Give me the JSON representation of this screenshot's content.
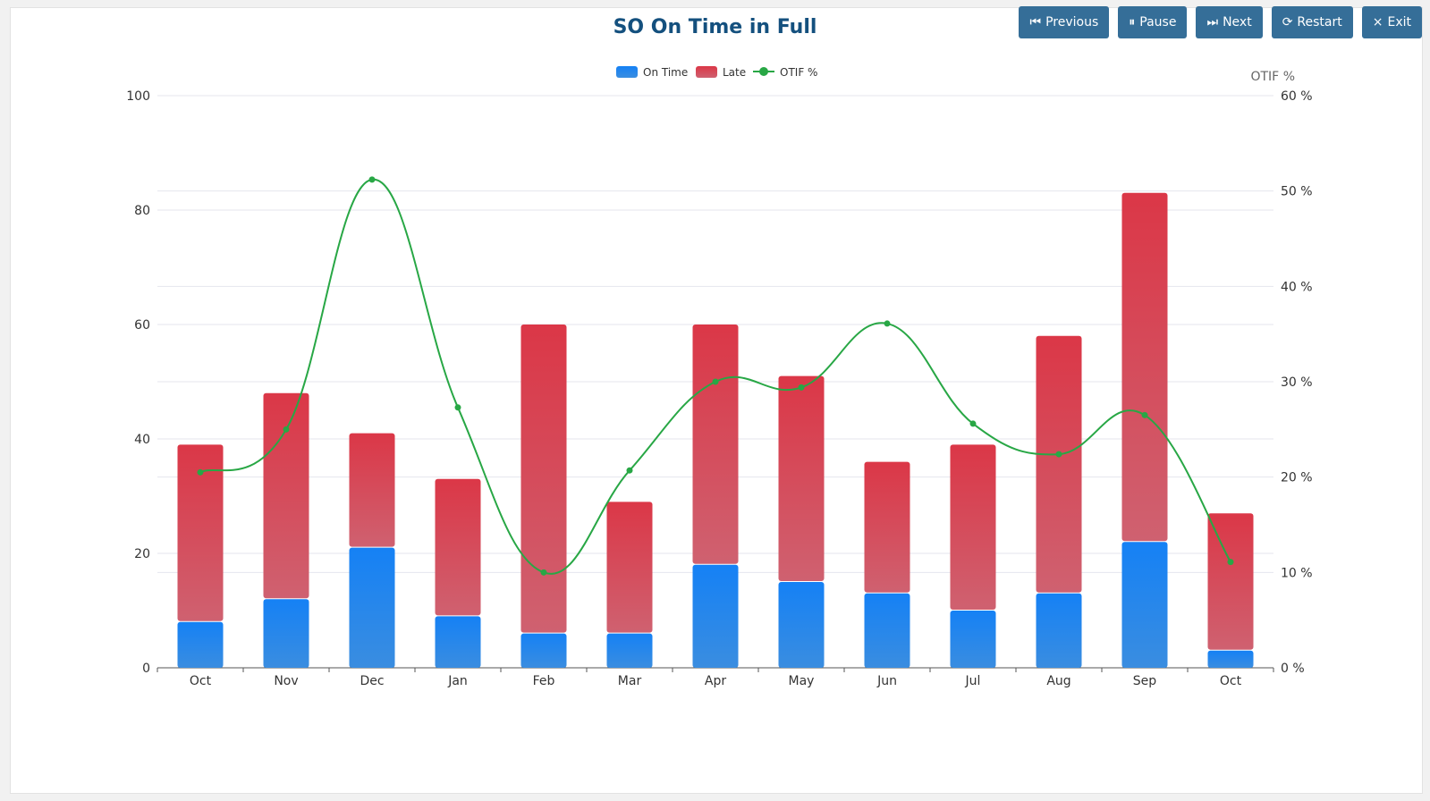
{
  "toolbar": {
    "buttons": [
      {
        "label": "Previous",
        "icon": "⏮"
      },
      {
        "label": "Pause",
        "icon": "⏸"
      },
      {
        "label": "Next",
        "icon": "⏭"
      },
      {
        "label": "Restart",
        "icon": "⟳"
      },
      {
        "label": "Exit",
        "icon": "×"
      }
    ]
  },
  "colors": {
    "on_time": "#1581f5",
    "late": "#db3747",
    "otif": "#28a745",
    "title": "#14507e",
    "button": "#356e98"
  },
  "chart_data": {
    "type": "bar",
    "stacked": true,
    "title": "SO On Time in Full",
    "categories": [
      "Oct",
      "Nov",
      "Dec",
      "Jan",
      "Feb",
      "Mar",
      "Apr",
      "May",
      "Jun",
      "Jul",
      "Aug",
      "Sep",
      "Oct"
    ],
    "series": [
      {
        "name": "On Time",
        "type": "bar",
        "axis": "left",
        "values": [
          8,
          12,
          21,
          9,
          6,
          6,
          18,
          15,
          13,
          10,
          13,
          22,
          3
        ]
      },
      {
        "name": "Late",
        "type": "bar",
        "axis": "left",
        "values": [
          31,
          36,
          20,
          24,
          54,
          23,
          42,
          36,
          23,
          29,
          45,
          61,
          24
        ]
      },
      {
        "name": "OTIF %",
        "type": "line",
        "axis": "right",
        "smooth": true,
        "values": [
          20.5,
          25.0,
          51.2,
          27.3,
          10.0,
          20.7,
          30.0,
          29.4,
          36.1,
          25.6,
          22.4,
          26.5,
          11.1
        ]
      }
    ],
    "yleft": {
      "range": [
        0,
        100
      ],
      "ticks": [
        "0",
        "20",
        "40",
        "60",
        "80",
        "100"
      ]
    },
    "yright": {
      "label": "OTIF %",
      "range": [
        0,
        60
      ],
      "ticks": [
        "0 %",
        "10 %",
        "20 %",
        "30 %",
        "40 %",
        "50 %",
        "60 %"
      ]
    },
    "legend": "top",
    "grid": true
  }
}
